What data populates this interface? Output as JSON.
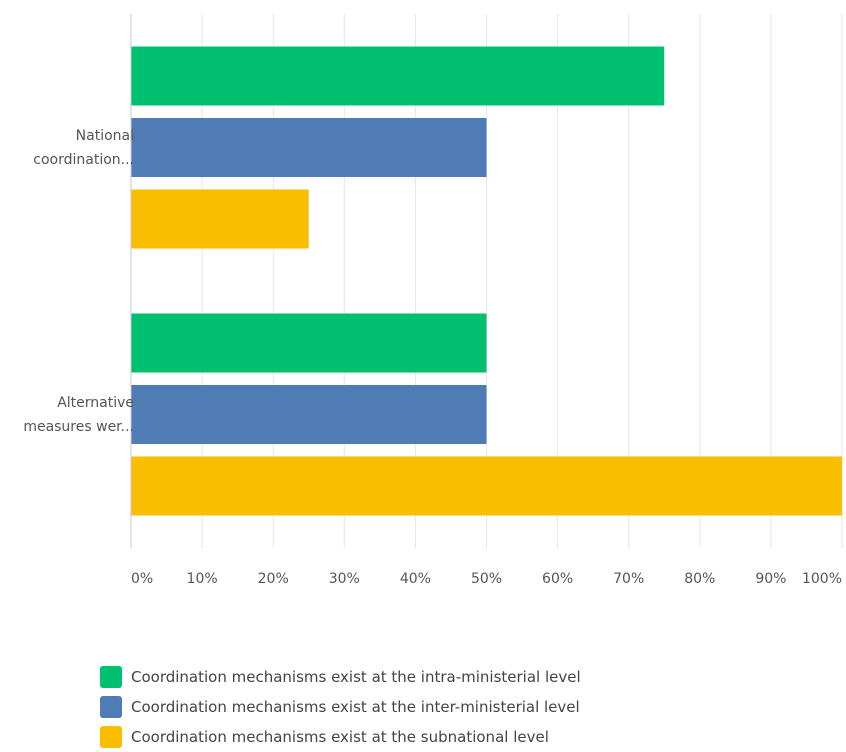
{
  "chart_data": {
    "type": "bar",
    "orientation": "horizontal",
    "categories": [
      "National coordination...",
      "Alternative measures wer..."
    ],
    "category_labels": [
      [
        "National",
        "coordination..."
      ],
      [
        "Alternative",
        "measures wer..."
      ]
    ],
    "series": [
      {
        "name": "Coordination mechanisms exist at the intra-ministerial level",
        "color": "#00BF6F",
        "values": [
          75,
          50
        ]
      },
      {
        "name": "Coordination mechanisms exist at the inter-ministerial level",
        "color": "#507CB6",
        "values": [
          50,
          50
        ]
      },
      {
        "name": "Coordination mechanisms exist at the subnational level",
        "color": "#F9BE00",
        "values": [
          25,
          100
        ]
      }
    ],
    "xlim": [
      0,
      100
    ],
    "x_ticks": [
      "0%",
      "10%",
      "20%",
      "30%",
      "40%",
      "50%",
      "60%",
      "70%",
      "80%",
      "90%",
      "100%"
    ],
    "grid": true,
    "legend_position": "bottom"
  }
}
